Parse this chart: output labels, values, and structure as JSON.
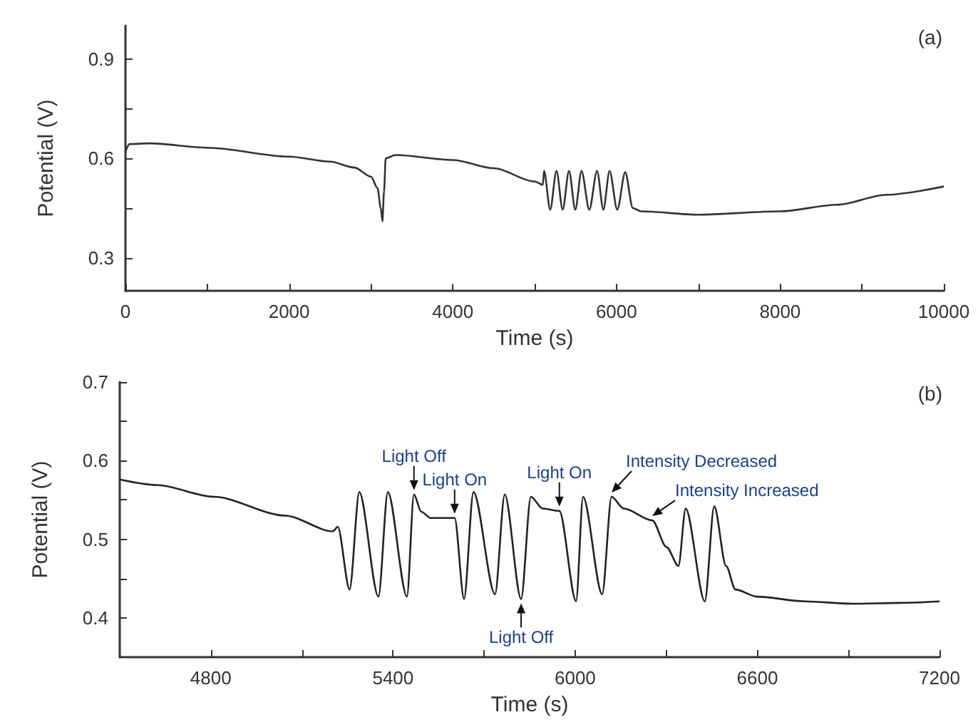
{
  "chart_data": [
    {
      "type": "line",
      "title": "(a)",
      "xlabel": "Time (s)",
      "ylabel": "Potential (V)",
      "color": "#333333",
      "marker": "none",
      "grid": false,
      "x": [
        0,
        50,
        300,
        1000,
        2000,
        2500,
        2800,
        3000,
        3080,
        3120,
        3140,
        3160,
        3180,
        3300,
        4000,
        4500,
        5000,
        5100,
        5115,
        5190,
        5267,
        5343,
        5420,
        5497,
        5573,
        5668,
        5763,
        5840,
        5916,
        6010,
        6107,
        6200,
        6300,
        7000,
        8000,
        8700,
        9300,
        10000
      ],
      "values": [
        0.62,
        0.643,
        0.645,
        0.632,
        0.605,
        0.59,
        0.572,
        0.545,
        0.51,
        0.45,
        0.41,
        0.5,
        0.6,
        0.61,
        0.595,
        0.57,
        0.53,
        0.52,
        0.562,
        0.445,
        0.562,
        0.445,
        0.562,
        0.445,
        0.562,
        0.445,
        0.562,
        0.445,
        0.562,
        0.445,
        0.558,
        0.45,
        0.44,
        0.43,
        0.44,
        0.46,
        0.49,
        0.515
      ],
      "xlim": [
        0,
        10000
      ],
      "ylim": [
        0.2,
        1.0
      ],
      "xticks": [
        0,
        {
          "value": 1000,
          "label": null
        },
        2000,
        {
          "value": 3000,
          "label": null
        },
        4000,
        {
          "value": 5000,
          "label": null
        },
        6000,
        {
          "value": 7000,
          "label": null
        },
        8000,
        {
          "value": 9000,
          "label": null
        },
        10000
      ],
      "yticks": [
        0.3,
        {
          "value": 0.45,
          "label": null
        },
        0.6,
        {
          "value": 0.75,
          "label": null
        },
        0.9
      ]
    },
    {
      "type": "line",
      "title": "(b)",
      "xlabel": "Time (s)",
      "ylabel": "Potential (V)",
      "color": "#222222",
      "marker": "none",
      "grid": false,
      "x": [
        4500,
        4622,
        4810,
        5045,
        5202,
        5218,
        5257,
        5289,
        5352,
        5383,
        5446,
        5469,
        5493,
        5524,
        5595,
        5603,
        5634,
        5665,
        5736,
        5768,
        5822,
        5854,
        5893,
        5948,
        6003,
        6026,
        6089,
        6120,
        6160,
        6254,
        6301,
        6340,
        6364,
        6427,
        6458,
        6497,
        6528,
        6599,
        6756,
        6913,
        7070,
        7200
      ],
      "values": [
        0.576,
        0.569,
        0.554,
        0.53,
        0.51,
        0.516,
        0.436,
        0.56,
        0.427,
        0.56,
        0.427,
        0.557,
        0.535,
        0.527,
        0.527,
        0.527,
        0.424,
        0.56,
        0.43,
        0.557,
        0.424,
        0.554,
        0.539,
        0.536,
        0.421,
        0.554,
        0.43,
        0.554,
        0.539,
        0.524,
        0.49,
        0.466,
        0.539,
        0.421,
        0.542,
        0.466,
        0.436,
        0.427,
        0.421,
        0.418,
        0.419,
        0.421
      ],
      "xlim": [
        4500,
        7200
      ],
      "ylim": [
        0.35,
        0.7
      ],
      "xticks": [
        4800,
        {
          "value": 5100,
          "label": null
        },
        5400,
        {
          "value": 5700,
          "label": null
        },
        6000,
        {
          "value": 6300,
          "label": null
        },
        6600,
        {
          "value": 6900,
          "label": null
        },
        7200
      ],
      "yticks": [
        0.4,
        {
          "value": 0.45,
          "label": null
        },
        0.5,
        {
          "value": 0.55,
          "label": null
        },
        0.6,
        {
          "value": 0.65,
          "label": null
        },
        0.7
      ],
      "annotations": [
        {
          "text": "Light Off",
          "x": 5469,
          "y": 0.557
        },
        {
          "text": "Light On",
          "x": 5603,
          "y": 0.527
        },
        {
          "text": "Light Off",
          "x": 5822,
          "y": 0.424
        },
        {
          "text": "Light On",
          "x": 5948,
          "y": 0.536
        },
        {
          "text": "Intensity Decreased",
          "x": 6120,
          "y": 0.554
        },
        {
          "text": "Intensity Increased",
          "x": 6254,
          "y": 0.524
        }
      ]
    }
  ]
}
